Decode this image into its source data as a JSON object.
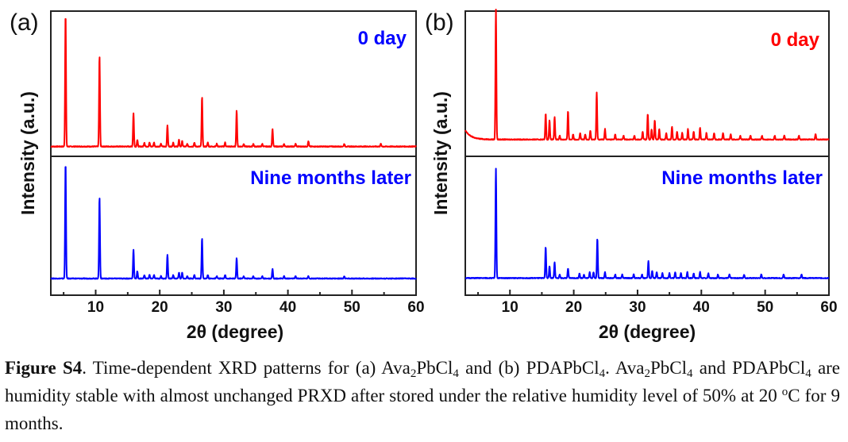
{
  "figure": {
    "panels": [
      {
        "tag": "(a)",
        "ylabel": "Intensity (a.u.)",
        "xlabel": "2θ (degree)",
        "xticks": [
          "10",
          "20",
          "30",
          "40",
          "50",
          "60"
        ],
        "top_label": "0 day",
        "top_label_color": "#0000ff",
        "bottom_label": "Nine months later",
        "bottom_label_color": "#0000ff"
      },
      {
        "tag": "(b)",
        "ylabel": "Intensity (a.u.)",
        "xlabel": "2θ (degree)",
        "xticks": [
          "10",
          "20",
          "30",
          "40",
          "50",
          "60"
        ],
        "top_label": "0 day",
        "top_label_color": "#ff0000",
        "bottom_label": "Nine months later",
        "bottom_label_color": "#0000ff"
      }
    ]
  },
  "chart_data": [
    {
      "type": "line",
      "panel": "(a)",
      "xlabel": "2θ (degree)",
      "ylabel": "Intensity (a.u.)",
      "xlim": [
        3,
        60
      ],
      "ylim": [
        0,
        1
      ],
      "grid": false,
      "series": [
        {
          "name": "0 day",
          "color": "#ff0000",
          "baseline": 0.02,
          "peaks": [
            [
              5.3,
              1.0
            ],
            [
              10.6,
              0.68
            ],
            [
              15.9,
              0.25
            ],
            [
              16.5,
              0.05
            ],
            [
              17.6,
              0.03
            ],
            [
              18.4,
              0.03
            ],
            [
              19.1,
              0.03
            ],
            [
              20.2,
              0.02
            ],
            [
              21.2,
              0.16
            ],
            [
              22.1,
              0.03
            ],
            [
              23.0,
              0.05
            ],
            [
              23.5,
              0.04
            ],
            [
              24.3,
              0.02
            ],
            [
              25.4,
              0.03
            ],
            [
              26.6,
              0.37
            ],
            [
              27.5,
              0.03
            ],
            [
              28.9,
              0.02
            ],
            [
              30.2,
              0.03
            ],
            [
              32.0,
              0.27
            ],
            [
              33.1,
              0.02
            ],
            [
              34.6,
              0.02
            ],
            [
              36.0,
              0.02
            ],
            [
              37.6,
              0.13
            ],
            [
              39.4,
              0.02
            ],
            [
              41.2,
              0.02
            ],
            [
              43.2,
              0.04
            ],
            [
              48.8,
              0.02
            ],
            [
              54.5,
              0.02
            ]
          ]
        },
        {
          "name": "Nine months later",
          "color": "#0000ff",
          "baseline": 0.02,
          "peaks": [
            [
              5.3,
              0.97
            ],
            [
              10.6,
              0.68
            ],
            [
              15.9,
              0.24
            ],
            [
              16.5,
              0.06
            ],
            [
              17.6,
              0.03
            ],
            [
              18.4,
              0.03
            ],
            [
              19.1,
              0.03
            ],
            [
              20.2,
              0.02
            ],
            [
              21.2,
              0.2
            ],
            [
              22.1,
              0.03
            ],
            [
              23.0,
              0.05
            ],
            [
              23.5,
              0.05
            ],
            [
              24.3,
              0.02
            ],
            [
              25.4,
              0.03
            ],
            [
              26.6,
              0.34
            ],
            [
              27.5,
              0.03
            ],
            [
              28.9,
              0.02
            ],
            [
              30.2,
              0.03
            ],
            [
              32.0,
              0.17
            ],
            [
              33.1,
              0.02
            ],
            [
              34.6,
              0.02
            ],
            [
              36.0,
              0.02
            ],
            [
              37.6,
              0.08
            ],
            [
              39.4,
              0.02
            ],
            [
              41.2,
              0.02
            ],
            [
              43.2,
              0.02
            ],
            [
              48.8,
              0.02
            ]
          ]
        }
      ]
    },
    {
      "type": "line",
      "panel": "(b)",
      "xlabel": "2θ (degree)",
      "ylabel": "Intensity (a.u.)",
      "xlim": [
        3,
        60
      ],
      "ylim": [
        0,
        1
      ],
      "grid": false,
      "series": [
        {
          "name": "0 day",
          "color": "#ff0000",
          "baseline": 0.05,
          "low_angle_rise": 0.07,
          "peaks": [
            [
              7.8,
              1.0
            ],
            [
              15.6,
              0.2
            ],
            [
              16.2,
              0.15
            ],
            [
              17.0,
              0.17
            ],
            [
              17.8,
              0.03
            ],
            [
              19.1,
              0.22
            ],
            [
              19.9,
              0.04
            ],
            [
              21.0,
              0.05
            ],
            [
              21.8,
              0.04
            ],
            [
              22.6,
              0.07
            ],
            [
              23.6,
              0.36
            ],
            [
              24.9,
              0.08
            ],
            [
              26.5,
              0.04
            ],
            [
              27.8,
              0.03
            ],
            [
              29.5,
              0.03
            ],
            [
              30.8,
              0.06
            ],
            [
              31.6,
              0.2
            ],
            [
              32.2,
              0.08
            ],
            [
              32.7,
              0.15
            ],
            [
              33.4,
              0.08
            ],
            [
              34.5,
              0.05
            ],
            [
              35.4,
              0.1
            ],
            [
              36.2,
              0.06
            ],
            [
              37.0,
              0.05
            ],
            [
              37.9,
              0.08
            ],
            [
              38.8,
              0.06
            ],
            [
              39.8,
              0.09
            ],
            [
              40.8,
              0.05
            ],
            [
              42.0,
              0.05
            ],
            [
              43.4,
              0.05
            ],
            [
              44.6,
              0.04
            ],
            [
              46.1,
              0.03
            ],
            [
              47.7,
              0.03
            ],
            [
              49.5,
              0.03
            ],
            [
              51.5,
              0.03
            ],
            [
              53.0,
              0.03
            ],
            [
              55.3,
              0.03
            ],
            [
              57.9,
              0.04
            ]
          ]
        },
        {
          "name": "Nine months later",
          "color": "#0000ff",
          "baseline": 0.03,
          "peaks": [
            [
              7.8,
              0.91
            ],
            [
              15.6,
              0.26
            ],
            [
              16.2,
              0.1
            ],
            [
              17.0,
              0.13
            ],
            [
              17.8,
              0.03
            ],
            [
              19.1,
              0.08
            ],
            [
              20.9,
              0.04
            ],
            [
              21.6,
              0.03
            ],
            [
              22.5,
              0.05
            ],
            [
              23.1,
              0.05
            ],
            [
              23.7,
              0.33
            ],
            [
              24.9,
              0.05
            ],
            [
              26.5,
              0.03
            ],
            [
              27.6,
              0.03
            ],
            [
              29.4,
              0.03
            ],
            [
              30.7,
              0.03
            ],
            [
              31.7,
              0.14
            ],
            [
              32.3,
              0.06
            ],
            [
              33.0,
              0.05
            ],
            [
              33.9,
              0.04
            ],
            [
              35.0,
              0.04
            ],
            [
              35.9,
              0.05
            ],
            [
              36.8,
              0.04
            ],
            [
              37.8,
              0.05
            ],
            [
              38.8,
              0.04
            ],
            [
              39.8,
              0.05
            ],
            [
              41.1,
              0.04
            ],
            [
              42.6,
              0.03
            ],
            [
              44.4,
              0.03
            ],
            [
              46.7,
              0.03
            ],
            [
              49.4,
              0.03
            ],
            [
              52.9,
              0.03
            ],
            [
              55.7,
              0.03
            ]
          ]
        }
      ]
    }
  ],
  "caption": {
    "label": "Figure S4",
    "parts": [
      ". Time-dependent XRD patterns for (a) Ava",
      "2",
      "PbCl",
      "4",
      " and (b) PDAPbCl",
      "4",
      ". Ava",
      "2",
      "PbCl",
      "4",
      " and PDAPbCl",
      "4",
      " are humidity stable with almost unchanged PRXD after stored under the relative humidity level of 50% at 20 ",
      "o",
      "C for 9 months."
    ]
  }
}
